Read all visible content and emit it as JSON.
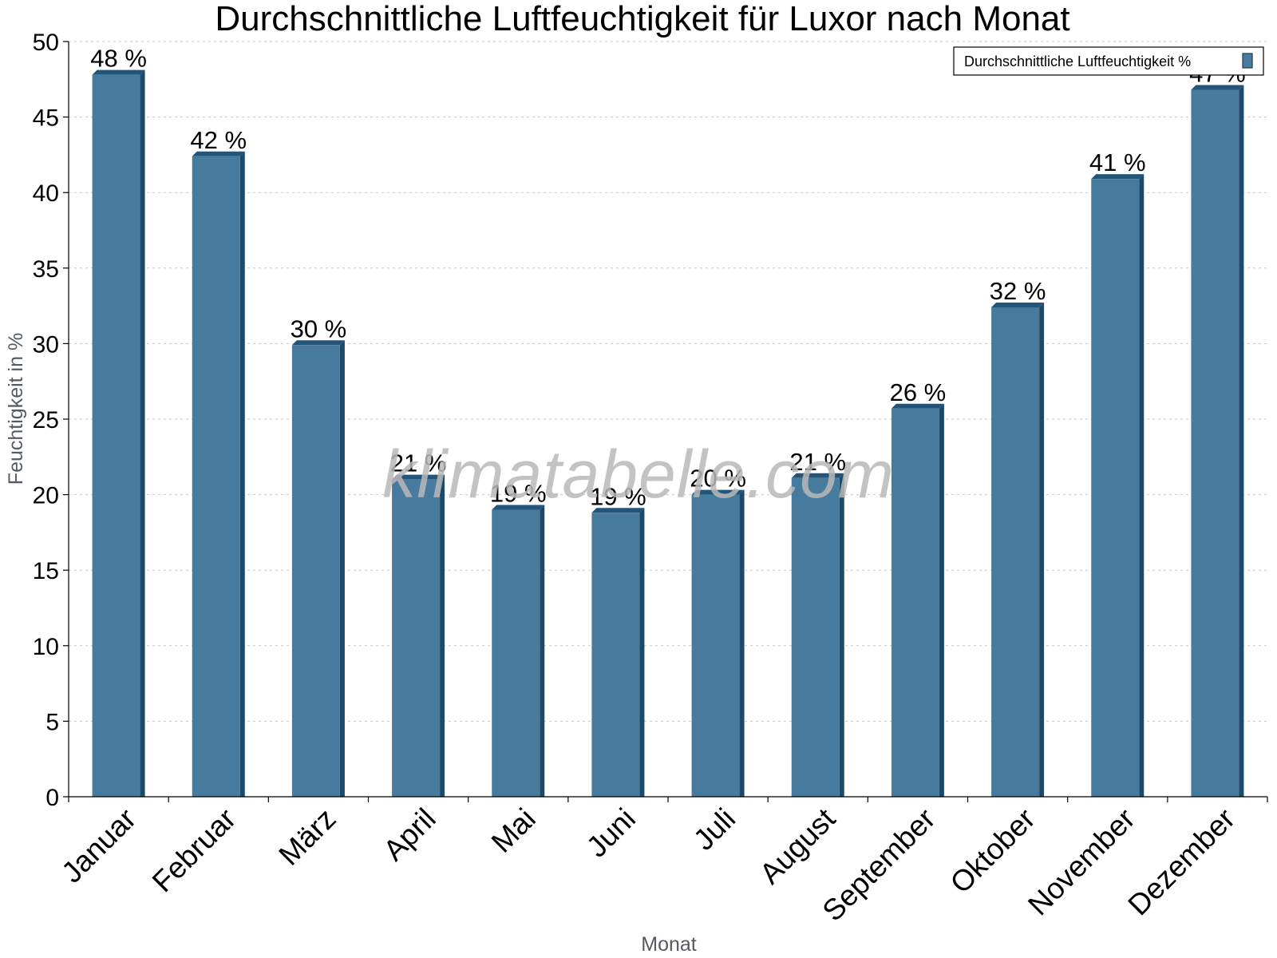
{
  "chart_data": {
    "type": "bar",
    "title": "Durchschnittliche Luftfeuchtigkeit für Luxor nach Monat",
    "xlabel": "Monat",
    "ylabel": "Feuchtigkeit in %",
    "ylim": [
      0,
      50
    ],
    "yticks": [
      "0",
      "5",
      "10",
      "15",
      "20",
      "25",
      "30",
      "35",
      "40",
      "45",
      "50"
    ],
    "categories": [
      "Januar",
      "Februar",
      "März",
      "April",
      "Mai",
      "Juni",
      "Juli",
      "August",
      "September",
      "Oktober",
      "November",
      "Dezember"
    ],
    "series": [
      {
        "name": "Durchschnittliche Luftfeuchtigkeit %",
        "values": [
          47.8,
          42.4,
          29.9,
          21.0,
          19.0,
          18.8,
          20.0,
          21.1,
          25.7,
          32.4,
          40.9,
          46.8
        ],
        "labels": [
          "48 %",
          "42 %",
          "30 %",
          "21 %",
          "19 %",
          "19 %",
          "20 %",
          "21 %",
          "26 %",
          "32 %",
          "41 %",
          "47 %"
        ],
        "color": "#467b9d"
      }
    ],
    "grid": true,
    "legend_position": "top-right",
    "colors": {
      "bar_front": "#467b9d",
      "bar_side": "#1d4a69",
      "bar_top": "#23557a"
    }
  },
  "watermark": "klimatabelle.com"
}
